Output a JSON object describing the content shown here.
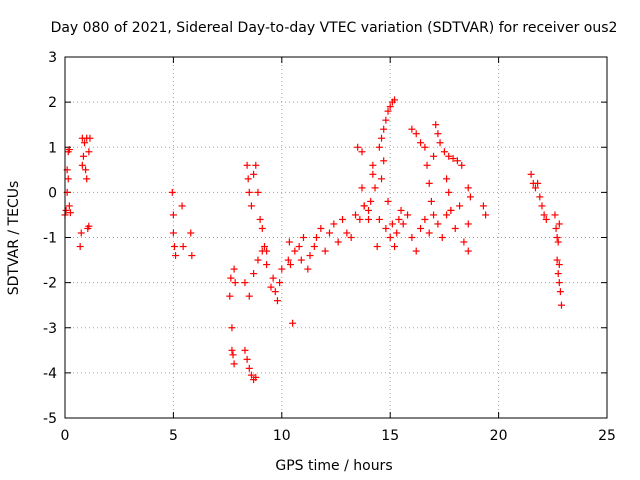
{
  "chart_data": {
    "type": "scatter",
    "title": "Day 080 of 2021, Sidereal Day-to-day VTEC variation (SDTVAR) for receiver ous2",
    "xlabel": "GPS time / hours",
    "ylabel": "SDTVAR / TECUs",
    "xlim": [
      0,
      25
    ],
    "ylim": [
      -5,
      3
    ],
    "xticks": [
      0,
      5,
      10,
      15,
      20,
      25
    ],
    "yticks": [
      -5,
      -4,
      -3,
      -2,
      -1,
      0,
      1,
      2,
      3
    ],
    "grid": true,
    "marker": "+",
    "color": "#ff0000",
    "series": [
      {
        "name": "SDTVAR",
        "points": [
          [
            0.0,
            -0.5
          ],
          [
            0.05,
            -0.4
          ],
          [
            0.1,
            0.0
          ],
          [
            0.1,
            0.5
          ],
          [
            0.15,
            0.9
          ],
          [
            0.2,
            0.95
          ],
          [
            0.15,
            0.3
          ],
          [
            0.2,
            -0.3
          ],
          [
            0.25,
            -0.45
          ],
          [
            0.7,
            -1.2
          ],
          [
            0.75,
            -0.9
          ],
          [
            0.8,
            0.6
          ],
          [
            0.8,
            1.2
          ],
          [
            0.85,
            0.8
          ],
          [
            0.9,
            1.1
          ],
          [
            0.95,
            0.5
          ],
          [
            1.0,
            1.2
          ],
          [
            1.0,
            0.3
          ],
          [
            1.05,
            -0.8
          ],
          [
            1.1,
            0.9
          ],
          [
            1.15,
            1.2
          ],
          [
            1.1,
            -0.75
          ],
          [
            4.95,
            0.0
          ],
          [
            5.0,
            -0.5
          ],
          [
            5.0,
            -0.9
          ],
          [
            5.05,
            -1.2
          ],
          [
            5.1,
            -1.4
          ],
          [
            5.4,
            -0.3
          ],
          [
            5.45,
            -1.2
          ],
          [
            5.8,
            -0.9
          ],
          [
            5.85,
            -1.4
          ],
          [
            7.6,
            -2.3
          ],
          [
            7.65,
            -1.9
          ],
          [
            7.7,
            -3.0
          ],
          [
            7.7,
            -3.5
          ],
          [
            7.75,
            -3.6
          ],
          [
            7.8,
            -3.8
          ],
          [
            7.8,
            -1.7
          ],
          [
            7.85,
            -2.0
          ],
          [
            8.3,
            -3.5
          ],
          [
            8.4,
            -3.7
          ],
          [
            8.5,
            -3.9
          ],
          [
            8.6,
            -4.05
          ],
          [
            8.7,
            -4.15
          ],
          [
            8.8,
            -4.1
          ],
          [
            8.4,
            0.6
          ],
          [
            8.45,
            0.3
          ],
          [
            8.5,
            0.0
          ],
          [
            8.6,
            -0.3
          ],
          [
            8.7,
            0.4
          ],
          [
            8.8,
            0.6
          ],
          [
            8.9,
            0.0
          ],
          [
            9.0,
            -0.6
          ],
          [
            9.1,
            -0.8
          ],
          [
            9.2,
            -1.2
          ],
          [
            9.3,
            -1.3
          ],
          [
            8.3,
            -2.0
          ],
          [
            8.5,
            -2.3
          ],
          [
            8.7,
            -1.8
          ],
          [
            8.9,
            -1.5
          ],
          [
            9.1,
            -1.3
          ],
          [
            9.3,
            -1.6
          ],
          [
            9.5,
            -2.1
          ],
          [
            9.6,
            -1.9
          ],
          [
            9.7,
            -2.2
          ],
          [
            9.8,
            -2.4
          ],
          [
            9.9,
            -2.0
          ],
          [
            10.0,
            -1.7
          ],
          [
            10.3,
            -1.5
          ],
          [
            10.35,
            -1.1
          ],
          [
            10.4,
            -1.6
          ],
          [
            10.5,
            -2.9
          ],
          [
            10.6,
            -1.3
          ],
          [
            10.8,
            -1.2
          ],
          [
            10.9,
            -1.5
          ],
          [
            11.0,
            -1.0
          ],
          [
            11.2,
            -1.7
          ],
          [
            11.3,
            -1.4
          ],
          [
            11.5,
            -1.2
          ],
          [
            11.6,
            -1.0
          ],
          [
            11.8,
            -0.8
          ],
          [
            12.0,
            -1.3
          ],
          [
            12.2,
            -0.9
          ],
          [
            12.4,
            -0.7
          ],
          [
            12.6,
            -1.1
          ],
          [
            12.8,
            -0.6
          ],
          [
            13.0,
            -0.9
          ],
          [
            13.2,
            -1.0
          ],
          [
            13.4,
            -0.5
          ],
          [
            13.6,
            -0.6
          ],
          [
            13.8,
            -0.3
          ],
          [
            14.0,
            -0.4
          ],
          [
            13.7,
            0.1
          ],
          [
            13.8,
            -0.3
          ],
          [
            14.0,
            -0.6
          ],
          [
            14.1,
            -0.2
          ],
          [
            14.2,
            0.4
          ],
          [
            14.3,
            0.1
          ],
          [
            14.4,
            -1.2
          ],
          [
            14.5,
            -0.6
          ],
          [
            14.6,
            0.3
          ],
          [
            14.7,
            0.7
          ],
          [
            14.8,
            -0.8
          ],
          [
            14.9,
            -0.2
          ],
          [
            15.0,
            -1.0
          ],
          [
            15.1,
            -0.7
          ],
          [
            15.2,
            -1.2
          ],
          [
            15.3,
            -0.9
          ],
          [
            15.4,
            -0.6
          ],
          [
            15.5,
            -0.4
          ],
          [
            13.5,
            1.0
          ],
          [
            13.7,
            0.9
          ],
          [
            14.2,
            0.6
          ],
          [
            14.5,
            1.0
          ],
          [
            14.6,
            1.2
          ],
          [
            14.7,
            1.4
          ],
          [
            14.8,
            1.6
          ],
          [
            14.9,
            1.8
          ],
          [
            15.0,
            1.9
          ],
          [
            15.1,
            2.0
          ],
          [
            15.2,
            2.05
          ],
          [
            15.6,
            -0.7
          ],
          [
            15.8,
            -0.5
          ],
          [
            16.0,
            -1.0
          ],
          [
            16.2,
            -1.3
          ],
          [
            16.4,
            -0.8
          ],
          [
            16.6,
            -0.6
          ],
          [
            16.8,
            -0.9
          ],
          [
            17.0,
            -0.5
          ],
          [
            17.2,
            -0.7
          ],
          [
            17.4,
            -1.0
          ],
          [
            17.6,
            -0.5
          ],
          [
            17.8,
            -0.4
          ],
          [
            18.0,
            -0.8
          ],
          [
            18.2,
            -0.3
          ],
          [
            18.4,
            -1.1
          ],
          [
            18.6,
            -0.7
          ],
          [
            16.0,
            1.4
          ],
          [
            16.2,
            1.3
          ],
          [
            16.4,
            1.1
          ],
          [
            16.6,
            1.0
          ],
          [
            16.7,
            0.6
          ],
          [
            16.8,
            0.2
          ],
          [
            16.9,
            -0.2
          ],
          [
            17.0,
            0.8
          ],
          [
            17.1,
            1.5
          ],
          [
            17.2,
            1.3
          ],
          [
            17.3,
            1.1
          ],
          [
            17.5,
            0.9
          ],
          [
            17.7,
            0.8
          ],
          [
            17.9,
            0.75
          ],
          [
            18.1,
            0.7
          ],
          [
            18.3,
            0.6
          ],
          [
            17.6,
            0.3
          ],
          [
            17.7,
            0.0
          ],
          [
            17.8,
            -0.4
          ],
          [
            18.6,
            0.1
          ],
          [
            18.7,
            -0.1
          ],
          [
            18.6,
            -1.3
          ],
          [
            19.3,
            -0.3
          ],
          [
            19.4,
            -0.5
          ],
          [
            21.5,
            0.4
          ],
          [
            21.6,
            0.2
          ],
          [
            21.7,
            0.1
          ],
          [
            21.8,
            0.2
          ],
          [
            21.9,
            -0.1
          ],
          [
            22.0,
            -0.3
          ],
          [
            22.1,
            -0.5
          ],
          [
            22.2,
            -0.6
          ],
          [
            22.6,
            -0.5
          ],
          [
            22.65,
            -0.8
          ],
          [
            22.7,
            -1.0
          ],
          [
            22.75,
            -1.1
          ],
          [
            22.8,
            -0.7
          ],
          [
            22.7,
            -1.5
          ],
          [
            22.75,
            -1.8
          ],
          [
            22.8,
            -2.0
          ],
          [
            22.85,
            -2.2
          ],
          [
            22.9,
            -2.5
          ],
          [
            22.8,
            -1.6
          ]
        ]
      }
    ]
  }
}
